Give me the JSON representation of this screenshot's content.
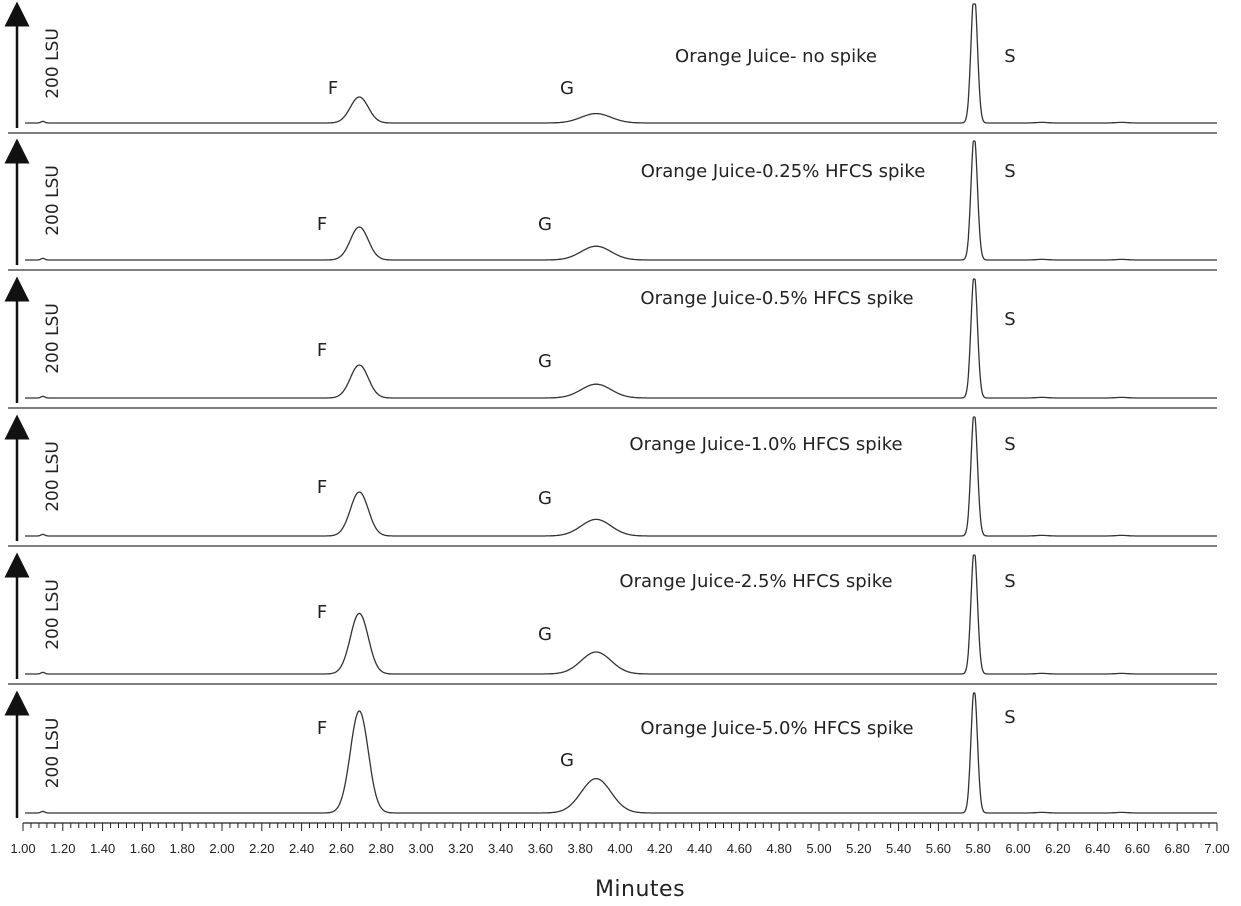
{
  "chart_data": {
    "type": "line",
    "xlabel": "Minutes",
    "xlim": [
      1.0,
      7.0
    ],
    "x_ticks": [
      "1.00",
      "1.20",
      "1.40",
      "1.60",
      "1.80",
      "2.00",
      "2.20",
      "2.40",
      "2.60",
      "2.80",
      "3.00",
      "3.20",
      "3.40",
      "3.60",
      "3.80",
      "4.00",
      "4.20",
      "4.40",
      "4.60",
      "4.80",
      "5.00",
      "5.20",
      "5.40",
      "5.60",
      "5.80",
      "6.00",
      "6.20",
      "6.40",
      "6.60",
      "6.80",
      "7.00"
    ],
    "ylabel": "200 LSU",
    "peak_labels": [
      "F",
      "G",
      "S"
    ],
    "series": [
      {
        "name": "Orange Juice- no spike",
        "peaks": [
          {
            "label": "F",
            "x": 2.69,
            "height": 130
          },
          {
            "label": "G",
            "x": 3.88,
            "height": 47
          },
          {
            "label": "S",
            "x": 5.78,
            "height": 655
          }
        ]
      },
      {
        "name": "Orange Juice-0.25% HFCS spike",
        "peaks": [
          {
            "label": "F",
            "x": 2.69,
            "height": 165
          },
          {
            "label": "G",
            "x": 3.88,
            "height": 69
          },
          {
            "label": "S",
            "x": 5.78,
            "height": 620
          }
        ]
      },
      {
        "name": "Orange Juice-0.5% HFCS spike",
        "peaks": [
          {
            "label": "F",
            "x": 2.69,
            "height": 165
          },
          {
            "label": "G",
            "x": 3.88,
            "height": 69
          },
          {
            "label": "S",
            "x": 5.78,
            "height": 620
          }
        ]
      },
      {
        "name": "Orange Juice-1.0% HFCS spike",
        "peaks": [
          {
            "label": "F",
            "x": 2.69,
            "height": 220
          },
          {
            "label": "G",
            "x": 3.88,
            "height": 83
          },
          {
            "label": "S",
            "x": 5.78,
            "height": 620
          }
        ]
      },
      {
        "name": "Orange Juice-2.5% HFCS spike",
        "peaks": [
          {
            "label": "F",
            "x": 2.69,
            "height": 303
          },
          {
            "label": "G",
            "x": 3.88,
            "height": 110
          },
          {
            "label": "S",
            "x": 5.78,
            "height": 620
          }
        ]
      },
      {
        "name": "Orange Juice-5.0% HFCS spike",
        "peaks": [
          {
            "label": "F",
            "x": 2.69,
            "height": 510
          },
          {
            "label": "G",
            "x": 3.88,
            "height": 172
          },
          {
            "label": "S",
            "x": 5.78,
            "height": 620
          }
        ]
      }
    ]
  }
}
